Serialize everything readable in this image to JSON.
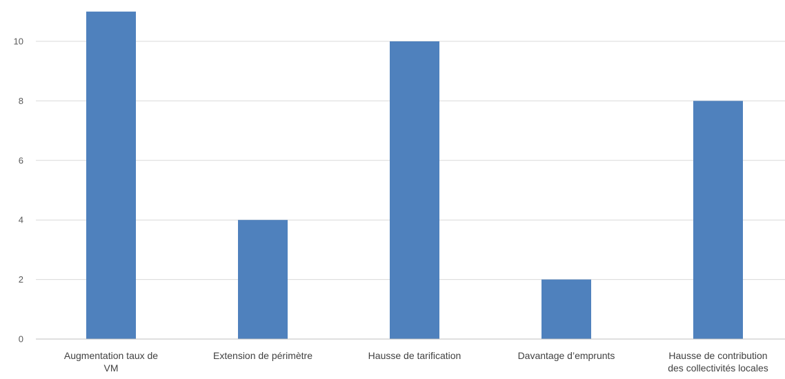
{
  "chart_data": {
    "type": "bar",
    "title": "",
    "xlabel": "",
    "ylabel": "",
    "categories": [
      [
        "Augmentation taux de",
        "VM"
      ],
      [
        "Extension de périmètre"
      ],
      [
        "Hausse de tarification"
      ],
      [
        "Davantage d’emprunts"
      ],
      [
        "Hausse de contribution",
        "des collectivités locales"
      ]
    ],
    "values": [
      11,
      4,
      10,
      2,
      8
    ],
    "ylim": [
      0,
      11
    ],
    "yticks": [
      0,
      2,
      4,
      6,
      8,
      10
    ],
    "grid": true,
    "legend": "none",
    "bar_color": "#4f81bd"
  }
}
